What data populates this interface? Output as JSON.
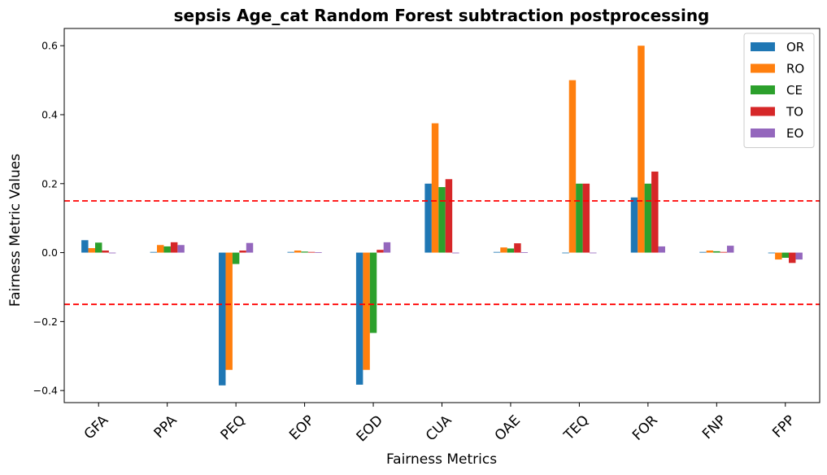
{
  "chart_data": {
    "type": "bar",
    "title": "sepsis Age_cat Random Forest subtraction postprocessing",
    "xlabel": "Fairness Metrics",
    "ylabel": "Fairness Metric Values",
    "categories": [
      "GFA",
      "PPA",
      "PEQ",
      "EOP",
      "EOD",
      "CUA",
      "OAE",
      "TEQ",
      "FOR",
      "FNP",
      "FPP"
    ],
    "series": [
      {
        "name": "OR",
        "color": "#1f77b4",
        "values": [
          0.036,
          0.002,
          -0.385,
          0.002,
          -0.383,
          0.2,
          0.002,
          0.0,
          0.16,
          0.002,
          0.0
        ]
      },
      {
        "name": "RO",
        "color": "#ff7f0e",
        "values": [
          0.013,
          0.022,
          -0.34,
          0.006,
          -0.34,
          0.375,
          0.015,
          0.5,
          0.6,
          0.006,
          -0.02
        ]
      },
      {
        "name": "CE",
        "color": "#2ca02c",
        "values": [
          0.029,
          0.018,
          -0.033,
          0.003,
          -0.233,
          0.19,
          0.012,
          0.2,
          0.2,
          0.004,
          -0.015
        ]
      },
      {
        "name": "TO",
        "color": "#d62728",
        "values": [
          0.006,
          0.03,
          0.006,
          0.002,
          0.008,
          0.213,
          0.027,
          0.2,
          0.235,
          0.002,
          -0.03
        ]
      },
      {
        "name": "EO",
        "color": "#9467bd",
        "values": [
          -0.002,
          0.022,
          0.028,
          0.001,
          0.03,
          -0.002,
          0.001,
          0.0,
          0.018,
          0.02,
          -0.02
        ]
      }
    ],
    "ylim": [
      -0.435,
      0.65
    ],
    "yticks": [
      -0.4,
      -0.2,
      0.0,
      0.2,
      0.4,
      0.6
    ],
    "ytick_labels": [
      "−0.4",
      "−0.2",
      "0.0",
      "0.2",
      "0.4",
      "0.6"
    ],
    "reference_lines": [
      {
        "value": 0.15,
        "color": "#ff0000",
        "style": "dashed"
      },
      {
        "value": -0.15,
        "color": "#ff0000",
        "style": "dashed"
      }
    ],
    "grid": false,
    "legend_position": "top-right"
  }
}
